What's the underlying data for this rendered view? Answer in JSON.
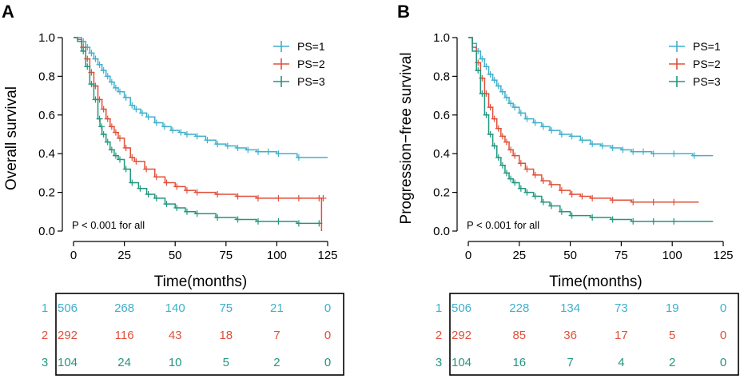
{
  "chart_data": [
    {
      "type": "line",
      "panel": "A",
      "ylabel": "Overall survival",
      "xlabel": "Time(months)",
      "xlim": [
        0,
        125
      ],
      "ylim": [
        0,
        1
      ],
      "xticks": [
        "0",
        "25",
        "50",
        "75",
        "100",
        "125"
      ],
      "yticks": [
        "0.0",
        "0.2",
        "0.4",
        "0.6",
        "0.8",
        "1.0"
      ],
      "annotation": "P < 0.001 for all",
      "legend_position": "top-right",
      "series": [
        {
          "name": "PS=1",
          "color": "#3fb0cc",
          "x": [
            0,
            2,
            4,
            6,
            8,
            10,
            12,
            14,
            16,
            18,
            20,
            22,
            25,
            28,
            30,
            33,
            36,
            40,
            44,
            48,
            52,
            55,
            60,
            65,
            70,
            75,
            80,
            85,
            90,
            95,
            100,
            110,
            125
          ],
          "y": [
            1.0,
            1.0,
            0.98,
            0.95,
            0.92,
            0.89,
            0.86,
            0.83,
            0.8,
            0.77,
            0.74,
            0.72,
            0.69,
            0.65,
            0.63,
            0.61,
            0.59,
            0.56,
            0.54,
            0.52,
            0.51,
            0.5,
            0.49,
            0.47,
            0.45,
            0.44,
            0.43,
            0.42,
            0.41,
            0.41,
            0.4,
            0.38,
            0.38
          ]
        },
        {
          "name": "PS=2",
          "color": "#e0503a",
          "x": [
            0,
            2,
            4,
            6,
            8,
            10,
            12,
            14,
            16,
            18,
            20,
            22,
            25,
            28,
            30,
            35,
            40,
            45,
            50,
            55,
            60,
            70,
            80,
            90,
            100,
            110,
            120,
            122,
            122
          ],
          "y": [
            1.0,
            0.99,
            0.95,
            0.89,
            0.82,
            0.75,
            0.68,
            0.63,
            0.58,
            0.54,
            0.51,
            0.48,
            0.43,
            0.38,
            0.36,
            0.32,
            0.28,
            0.25,
            0.23,
            0.21,
            0.2,
            0.19,
            0.18,
            0.17,
            0.17,
            0.17,
            0.17,
            0.17,
            0.0
          ]
        },
        {
          "name": "PS=3",
          "color": "#21977f",
          "x": [
            0,
            2,
            4,
            6,
            8,
            10,
            12,
            13,
            14,
            16,
            18,
            20,
            22,
            25,
            28,
            32,
            36,
            40,
            45,
            50,
            55,
            60,
            70,
            80,
            90,
            100,
            110,
            120,
            122
          ],
          "y": [
            1.0,
            0.98,
            0.93,
            0.85,
            0.76,
            0.68,
            0.58,
            0.54,
            0.5,
            0.46,
            0.42,
            0.39,
            0.37,
            0.32,
            0.25,
            0.22,
            0.19,
            0.17,
            0.14,
            0.12,
            0.1,
            0.09,
            0.07,
            0.06,
            0.05,
            0.05,
            0.04,
            0.04,
            0.04
          ]
        }
      ],
      "risk_table": {
        "groups": [
          "1",
          "2",
          "3"
        ],
        "times": [
          0,
          25,
          50,
          75,
          100,
          125
        ],
        "rows": [
          {
            "group": "1",
            "color": "#3fb0cc",
            "values": [
              "506",
              "268",
              "140",
              "75",
              "21",
              "0"
            ]
          },
          {
            "group": "2",
            "color": "#e0503a",
            "values": [
              "292",
              "116",
              "43",
              "18",
              "7",
              "0"
            ]
          },
          {
            "group": "3",
            "color": "#21977f",
            "values": [
              "104",
              "24",
              "10",
              "5",
              "2",
              "0"
            ]
          }
        ]
      }
    },
    {
      "type": "line",
      "panel": "B",
      "ylabel": "Progression−free survival",
      "xlabel": "Time(months)",
      "xlim": [
        0,
        125
      ],
      "ylim": [
        0,
        1
      ],
      "xticks": [
        "0",
        "25",
        "50",
        "75",
        "100",
        "125"
      ],
      "yticks": [
        "0.0",
        "0.2",
        "0.4",
        "0.6",
        "0.8",
        "1.0"
      ],
      "annotation": "P < 0.001 for all",
      "legend_position": "top-right",
      "series": [
        {
          "name": "PS=1",
          "color": "#3fb0cc",
          "x": [
            0,
            2,
            4,
            6,
            8,
            10,
            12,
            14,
            16,
            18,
            20,
            22,
            25,
            28,
            32,
            36,
            40,
            45,
            50,
            55,
            60,
            65,
            70,
            75,
            80,
            85,
            90,
            100,
            110,
            120
          ],
          "y": [
            1.0,
            0.97,
            0.93,
            0.89,
            0.85,
            0.81,
            0.78,
            0.75,
            0.72,
            0.69,
            0.66,
            0.64,
            0.61,
            0.58,
            0.56,
            0.54,
            0.52,
            0.5,
            0.49,
            0.47,
            0.45,
            0.44,
            0.43,
            0.42,
            0.41,
            0.41,
            0.4,
            0.4,
            0.39,
            0.39
          ]
        },
        {
          "name": "PS=2",
          "color": "#e0503a",
          "x": [
            0,
            2,
            4,
            6,
            8,
            10,
            12,
            14,
            16,
            18,
            20,
            22,
            25,
            28,
            32,
            36,
            40,
            45,
            50,
            55,
            60,
            70,
            80,
            90,
            100,
            113
          ],
          "y": [
            1.0,
            0.95,
            0.87,
            0.79,
            0.71,
            0.64,
            0.58,
            0.53,
            0.49,
            0.46,
            0.42,
            0.39,
            0.35,
            0.32,
            0.29,
            0.26,
            0.24,
            0.21,
            0.19,
            0.18,
            0.17,
            0.16,
            0.15,
            0.15,
            0.15,
            0.15
          ]
        },
        {
          "name": "PS=3",
          "color": "#21977f",
          "x": [
            0,
            2,
            4,
            6,
            8,
            10,
            12,
            14,
            16,
            18,
            20,
            22,
            25,
            28,
            32,
            36,
            40,
            45,
            50,
            60,
            70,
            80,
            90,
            100,
            120
          ],
          "y": [
            1.0,
            0.93,
            0.83,
            0.71,
            0.6,
            0.5,
            0.44,
            0.38,
            0.34,
            0.3,
            0.27,
            0.25,
            0.22,
            0.2,
            0.18,
            0.15,
            0.13,
            0.1,
            0.08,
            0.07,
            0.06,
            0.05,
            0.05,
            0.05,
            0.05
          ]
        }
      ],
      "risk_table": {
        "groups": [
          "1",
          "2",
          "3"
        ],
        "times": [
          0,
          25,
          50,
          75,
          100,
          125
        ],
        "rows": [
          {
            "group": "1",
            "color": "#3fb0cc",
            "values": [
              "506",
              "228",
              "134",
              "73",
              "19",
              "0"
            ]
          },
          {
            "group": "2",
            "color": "#e0503a",
            "values": [
              "292",
              "85",
              "36",
              "17",
              "5",
              "0"
            ]
          },
          {
            "group": "3",
            "color": "#21977f",
            "values": [
              "104",
              "16",
              "7",
              "4",
              "2",
              "0"
            ]
          }
        ]
      }
    }
  ]
}
